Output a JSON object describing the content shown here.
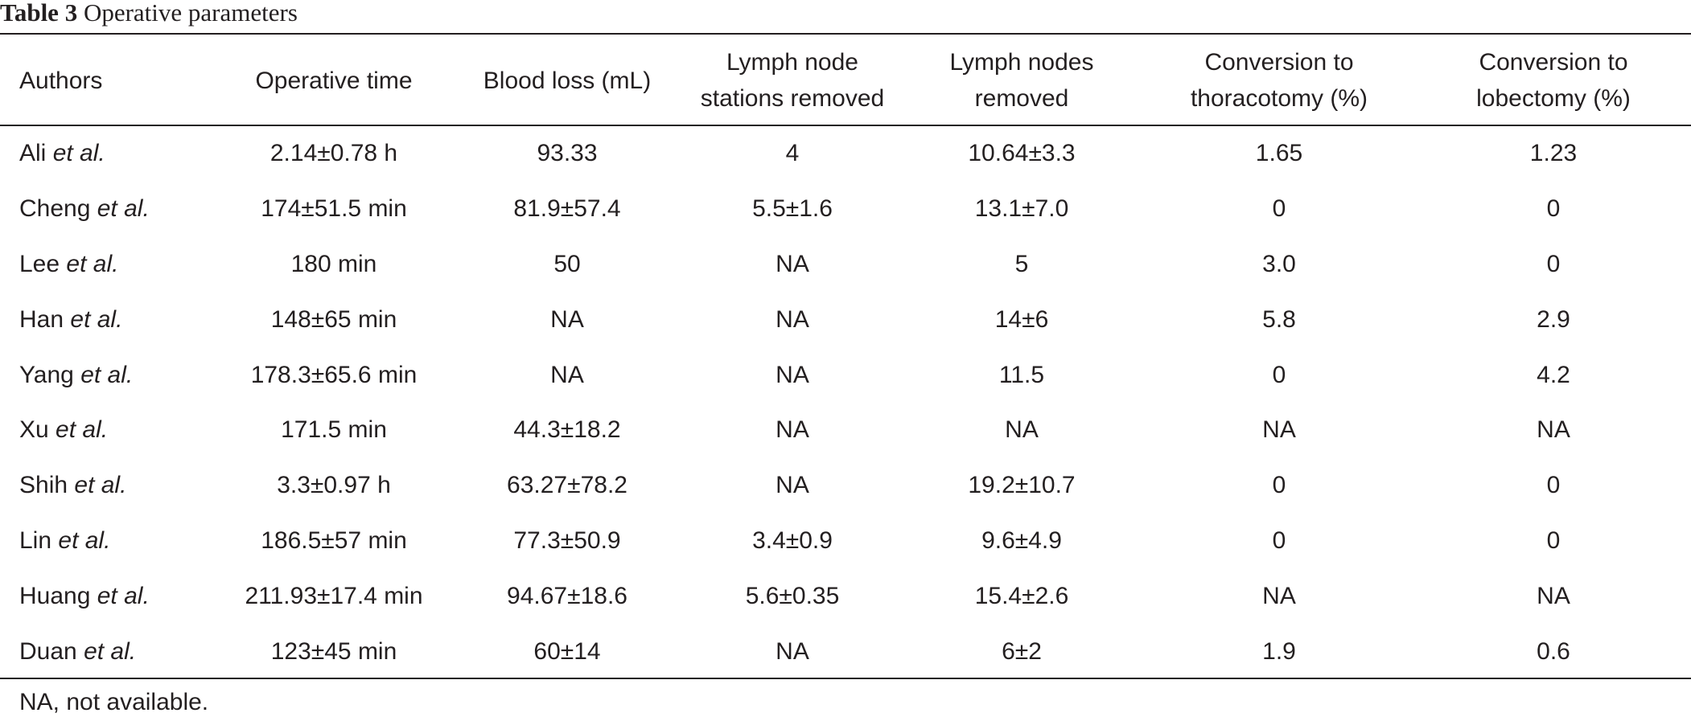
{
  "caption": {
    "label": "Table 3",
    "title": "Operative parameters"
  },
  "columns": [
    [
      "Authors"
    ],
    [
      "Operative time"
    ],
    [
      "Blood loss (mL)"
    ],
    [
      "Lymph node",
      "stations removed"
    ],
    [
      "Lymph nodes",
      "removed"
    ],
    [
      "Conversion to",
      "thoracotomy (%)"
    ],
    [
      "Conversion to",
      "lobectomy (%)"
    ]
  ],
  "rows": [
    {
      "author": "Ali",
      "etal": "et al.",
      "cells": [
        "2.14±0.78 h",
        "93.33",
        "4",
        "10.64±3.3",
        "1.65",
        "1.23"
      ]
    },
    {
      "author": "Cheng",
      "etal": "et al.",
      "cells": [
        "174±51.5 min",
        "81.9±57.4",
        "5.5±1.6",
        "13.1±7.0",
        "0",
        "0"
      ]
    },
    {
      "author": "Lee",
      "etal": "et al.",
      "cells": [
        "180 min",
        "50",
        "NA",
        "5",
        "3.0",
        "0"
      ]
    },
    {
      "author": "Han",
      "etal": "et al.",
      "cells": [
        "148±65 min",
        "NA",
        "NA",
        "14±6",
        "5.8",
        "2.9"
      ]
    },
    {
      "author": "Yang",
      "etal": "et al.",
      "cells": [
        "178.3±65.6 min",
        "NA",
        "NA",
        "11.5",
        "0",
        "4.2"
      ]
    },
    {
      "author": "Xu",
      "etal": "et al.",
      "cells": [
        "171.5 min",
        "44.3±18.2",
        "NA",
        "NA",
        "NA",
        "NA"
      ]
    },
    {
      "author": "Shih",
      "etal": "et al.",
      "cells": [
        "3.3±0.97 h",
        "63.27±78.2",
        "NA",
        "19.2±10.7",
        "0",
        "0"
      ]
    },
    {
      "author": "Lin",
      "etal": "et al.",
      "cells": [
        "186.5±57 min",
        "77.3±50.9",
        "3.4±0.9",
        "9.6±4.9",
        "0",
        "0"
      ]
    },
    {
      "author": "Huang",
      "etal": "et al.",
      "cells": [
        "211.93±17.4 min",
        "94.67±18.6",
        "5.6±0.35",
        "15.4±2.6",
        "NA",
        "NA"
      ]
    },
    {
      "author": "Duan",
      "etal": "et al.",
      "cells": [
        "123±45 min",
        "60±14",
        "NA",
        "6±2",
        "1.9",
        "0.6"
      ]
    }
  ],
  "footnote": "NA, not available."
}
